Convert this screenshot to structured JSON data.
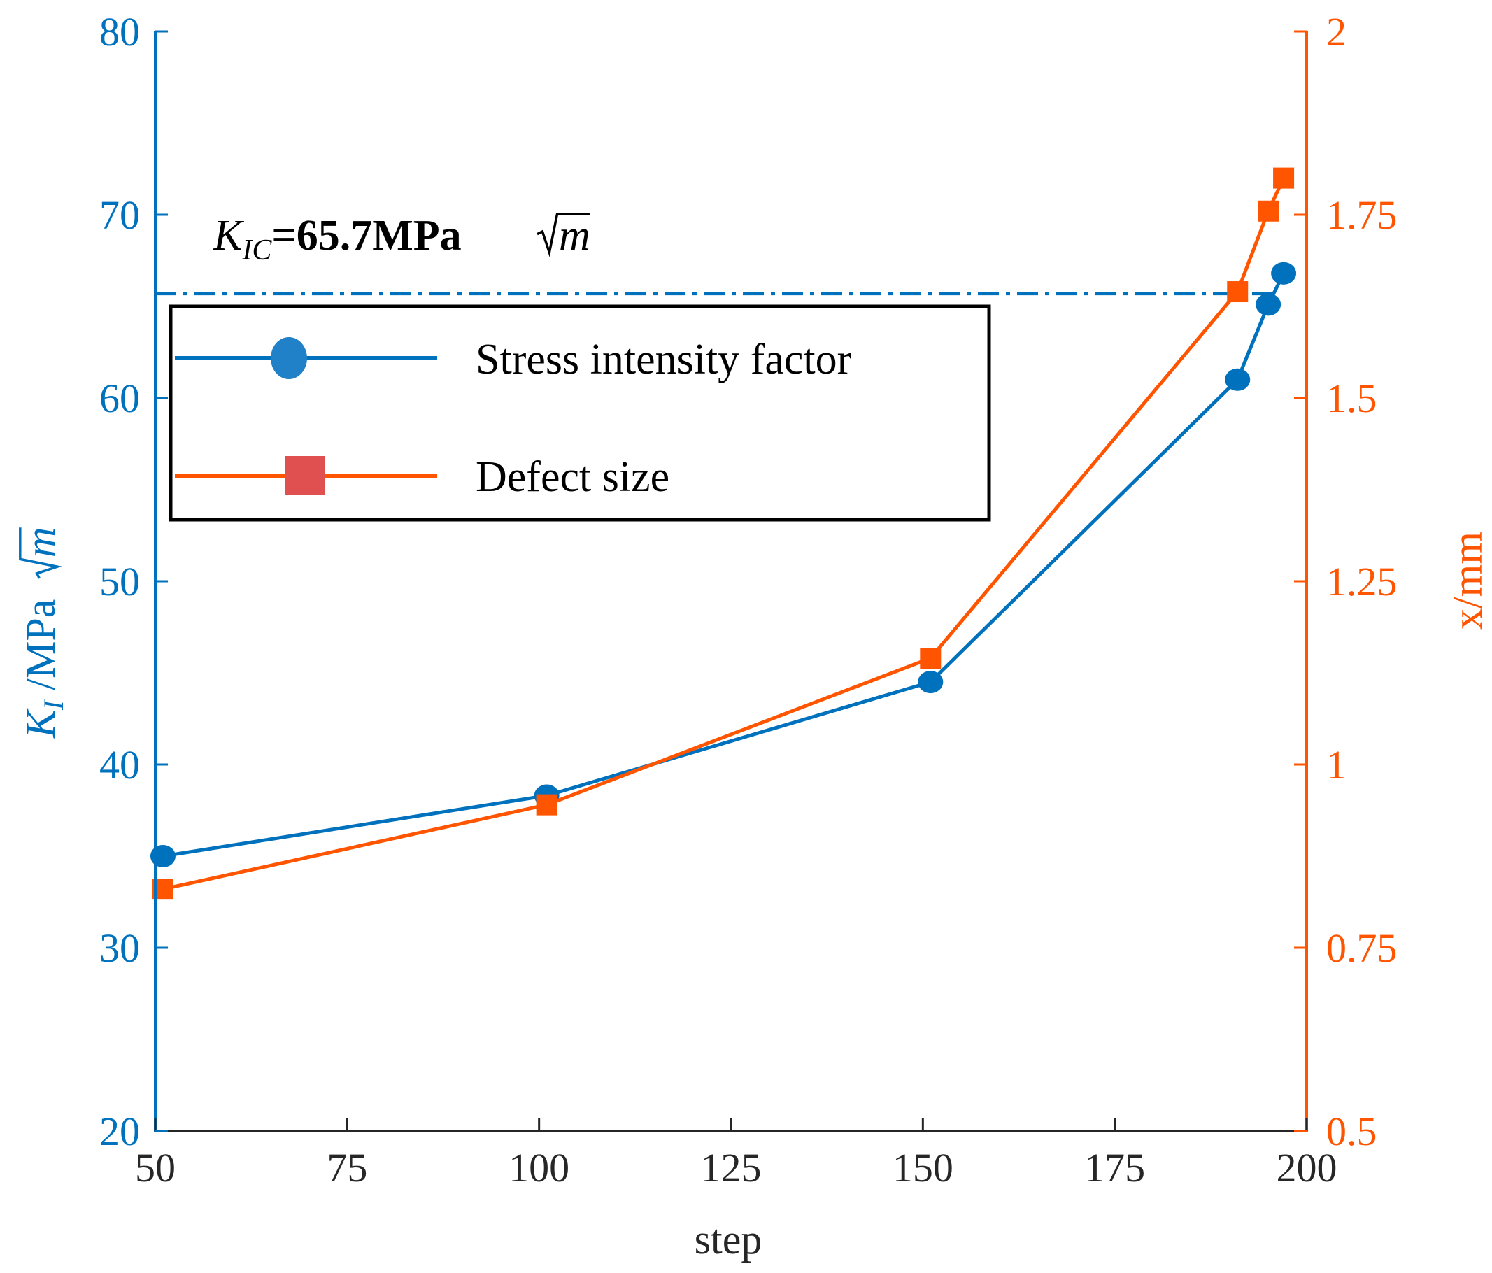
{
  "chart_data": {
    "type": "line",
    "xlabel": "step",
    "x_ticks": [
      50,
      75,
      100,
      125,
      150,
      175,
      200
    ],
    "xlim": [
      50,
      200
    ],
    "left_axis": {
      "label_sym": "K",
      "label_sub": "I",
      "label_unit": " /MPa",
      "label_sqrt": "m",
      "ylim": [
        20,
        80
      ],
      "ticks": [
        20,
        30,
        40,
        50,
        60,
        70,
        80
      ],
      "color": "#0072BD"
    },
    "right_axis": {
      "label": "x/mm",
      "ylim": [
        0.5,
        2
      ],
      "ticks": [
        "0.5",
        "0.75",
        "1",
        "1.25",
        "1.5",
        "1.75",
        "2"
      ],
      "color": "#FF5500"
    },
    "series": [
      {
        "name": "Stress intensity factor",
        "axis": "left",
        "marker": "circle",
        "color": "#0072BD",
        "legend_marker_color": "#2080C8",
        "x": [
          51,
          101,
          151,
          191,
          195,
          197
        ],
        "y": [
          35.0,
          38.3,
          44.5,
          61.0,
          65.1,
          66.8
        ]
      },
      {
        "name": "Defect size",
        "axis": "right",
        "marker": "square",
        "color": "#FF5500",
        "legend_marker_color": "#E05050",
        "x": [
          51,
          101,
          151,
          191,
          195,
          197
        ],
        "y": [
          0.83,
          0.945,
          1.145,
          1.645,
          1.755,
          1.8
        ]
      }
    ],
    "reference_line": {
      "axis": "left",
      "y": 65.7,
      "x_start": 50,
      "x_end": 196,
      "style": "dash-dot",
      "color": "#0072BD"
    },
    "annotation": {
      "sym": "K",
      "sub": "IC",
      "value": "=65.7MPa",
      "sqrt": "m"
    },
    "legend_placement": "upper-left"
  }
}
